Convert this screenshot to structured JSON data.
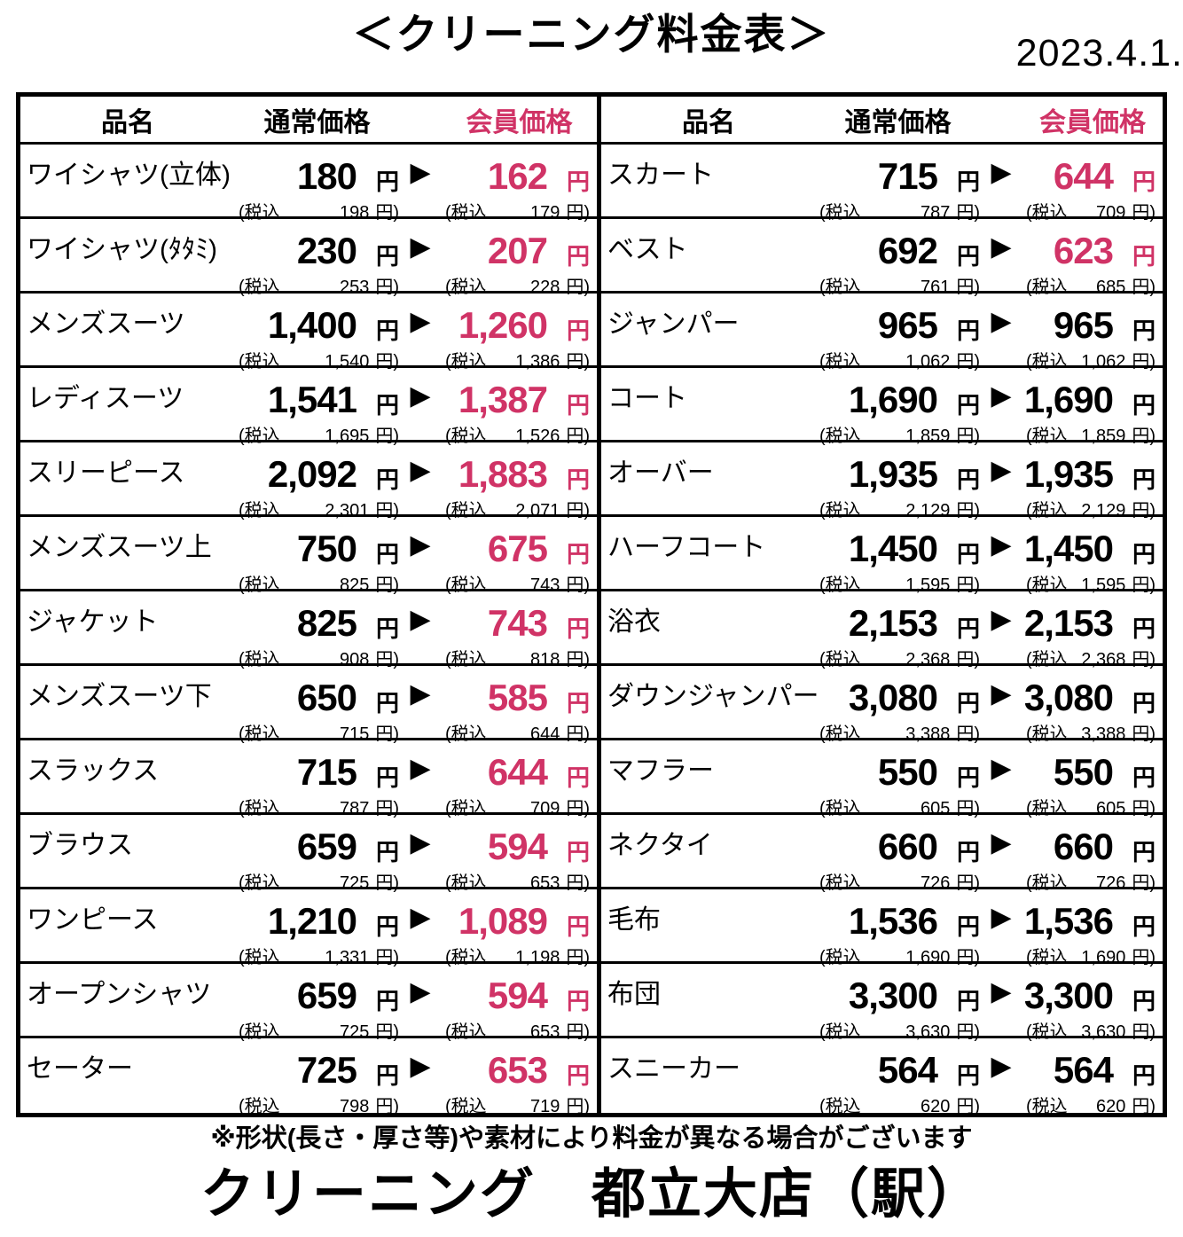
{
  "page": {
    "title": "＜クリーニング料金表＞",
    "date": "2023.4.1.",
    "footnote": "※形状(長さ・厚さ等)や素材により料金が異なる場合がございます",
    "shop_name": "クリーニング　都立大店（駅）"
  },
  "labels": {
    "item_header": "品名",
    "regular_header": "通常価格",
    "member_header": "会員価格",
    "yen": "円",
    "tax_open": "(税込",
    "tax_close": "円)",
    "arrow_icon": "▶"
  },
  "colors": {
    "accent_pink": "#d03366",
    "text_black": "#000000"
  },
  "rows_left": [
    {
      "item": "ワイシャツ(立体)",
      "regular": "180",
      "regular_tax": "198",
      "member": "162",
      "member_tax": "179",
      "discounted": true
    },
    {
      "item": "ワイシャツ(ﾀﾀﾐ)",
      "regular": "230",
      "regular_tax": "253",
      "member": "207",
      "member_tax": "228",
      "discounted": true
    },
    {
      "item": "メンズスーツ",
      "regular": "1,400",
      "regular_tax": "1,540",
      "member": "1,260",
      "member_tax": "1,386",
      "discounted": true
    },
    {
      "item": "レディスーツ",
      "regular": "1,541",
      "regular_tax": "1,695",
      "member": "1,387",
      "member_tax": "1,526",
      "discounted": true
    },
    {
      "item": "スリーピース",
      "regular": "2,092",
      "regular_tax": "2,301",
      "member": "1,883",
      "member_tax": "2,071",
      "discounted": true
    },
    {
      "item": "メンズスーツ上",
      "regular": "750",
      "regular_tax": "825",
      "member": "675",
      "member_tax": "743",
      "discounted": true
    },
    {
      "item": "ジャケット",
      "regular": "825",
      "regular_tax": "908",
      "member": "743",
      "member_tax": "818",
      "discounted": true
    },
    {
      "item": "メンズスーツ下",
      "regular": "650",
      "regular_tax": "715",
      "member": "585",
      "member_tax": "644",
      "discounted": true
    },
    {
      "item": "スラックス",
      "regular": "715",
      "regular_tax": "787",
      "member": "644",
      "member_tax": "709",
      "discounted": true
    },
    {
      "item": "ブラウス",
      "regular": "659",
      "regular_tax": "725",
      "member": "594",
      "member_tax": "653",
      "discounted": true
    },
    {
      "item": "ワンピース",
      "regular": "1,210",
      "regular_tax": "1,331",
      "member": "1,089",
      "member_tax": "1,198",
      "discounted": true
    },
    {
      "item": "オープンシャツ",
      "regular": "659",
      "regular_tax": "725",
      "member": "594",
      "member_tax": "653",
      "discounted": true
    },
    {
      "item": "セーター",
      "regular": "725",
      "regular_tax": "798",
      "member": "653",
      "member_tax": "719",
      "discounted": true
    }
  ],
  "rows_right": [
    {
      "item": "スカート",
      "regular": "715",
      "regular_tax": "787",
      "member": "644",
      "member_tax": "709",
      "discounted": true
    },
    {
      "item": "ベスト",
      "regular": "692",
      "regular_tax": "761",
      "member": "623",
      "member_tax": "685",
      "discounted": true
    },
    {
      "item": "ジャンパー",
      "regular": "965",
      "regular_tax": "1,062",
      "member": "965",
      "member_tax": "1,062",
      "discounted": false
    },
    {
      "item": "コート",
      "regular": "1,690",
      "regular_tax": "1,859",
      "member": "1,690",
      "member_tax": "1,859",
      "discounted": false
    },
    {
      "item": "オーバー",
      "regular": "1,935",
      "regular_tax": "2,129",
      "member": "1,935",
      "member_tax": "2,129",
      "discounted": false
    },
    {
      "item": "ハーフコート",
      "regular": "1,450",
      "regular_tax": "1,595",
      "member": "1,450",
      "member_tax": "1,595",
      "discounted": false
    },
    {
      "item": "浴衣",
      "regular": "2,153",
      "regular_tax": "2,368",
      "member": "2,153",
      "member_tax": "2,368",
      "discounted": false
    },
    {
      "item": "ダウンジャンパー",
      "regular": "3,080",
      "regular_tax": "3,388",
      "member": "3,080",
      "member_tax": "3,388",
      "discounted": false
    },
    {
      "item": "マフラー",
      "regular": "550",
      "regular_tax": "605",
      "member": "550",
      "member_tax": "605",
      "discounted": false
    },
    {
      "item": "ネクタイ",
      "regular": "660",
      "regular_tax": "726",
      "member": "660",
      "member_tax": "726",
      "discounted": false
    },
    {
      "item": "毛布",
      "regular": "1,536",
      "regular_tax": "1,690",
      "member": "1,536",
      "member_tax": "1,690",
      "discounted": false
    },
    {
      "item": "布団",
      "regular": "3,300",
      "regular_tax": "3,630",
      "member": "3,300",
      "member_tax": "3,630",
      "discounted": false
    },
    {
      "item": "スニーカー",
      "regular": "564",
      "regular_tax": "620",
      "member": "564",
      "member_tax": "620",
      "discounted": false
    }
  ]
}
